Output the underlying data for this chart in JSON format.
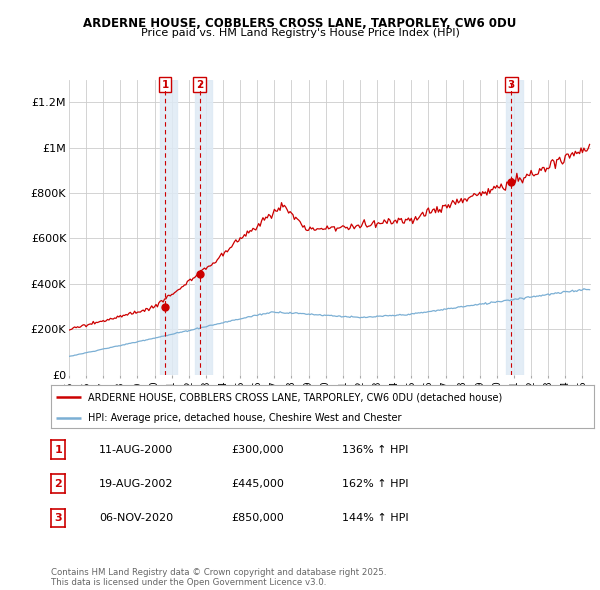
{
  "title": "ARDERNE HOUSE, COBBLERS CROSS LANE, TARPORLEY, CW6 0DU",
  "subtitle": "Price paid vs. HM Land Registry's House Price Index (HPI)",
  "hpi_label": "HPI: Average price, detached house, Cheshire West and Chester",
  "house_label": "ARDERNE HOUSE, COBBLERS CROSS LANE, TARPORLEY, CW6 0DU (detached house)",
  "house_color": "#cc0000",
  "hpi_color": "#7bafd4",
  "background_color": "#ffffff",
  "grid_color": "#cccccc",
  "ylim": [
    0,
    1300000
  ],
  "xlim_start": 1995.0,
  "xlim_end": 2025.5,
  "yticks": [
    0,
    200000,
    400000,
    600000,
    800000,
    1000000,
    1200000
  ],
  "ytick_labels": [
    "£0",
    "£200K",
    "£400K",
    "£600K",
    "£800K",
    "£1M",
    "£1.2M"
  ],
  "sale_markers": [
    {
      "year": 2000.617,
      "price": 300000,
      "label": "1"
    },
    {
      "year": 2002.633,
      "price": 445000,
      "label": "2"
    },
    {
      "year": 2020.85,
      "price": 850000,
      "label": "3"
    }
  ],
  "table_rows": [
    {
      "num": "1",
      "date": "11-AUG-2000",
      "price": "£300,000",
      "hpi": "136% ↑ HPI"
    },
    {
      "num": "2",
      "date": "19-AUG-2002",
      "price": "£445,000",
      "hpi": "162% ↑ HPI"
    },
    {
      "num": "3",
      "date": "06-NOV-2020",
      "price": "£850,000",
      "hpi": "144% ↑ HPI"
    }
  ],
  "footer": "Contains HM Land Registry data © Crown copyright and database right 2025.\nThis data is licensed under the Open Government Licence v3.0."
}
